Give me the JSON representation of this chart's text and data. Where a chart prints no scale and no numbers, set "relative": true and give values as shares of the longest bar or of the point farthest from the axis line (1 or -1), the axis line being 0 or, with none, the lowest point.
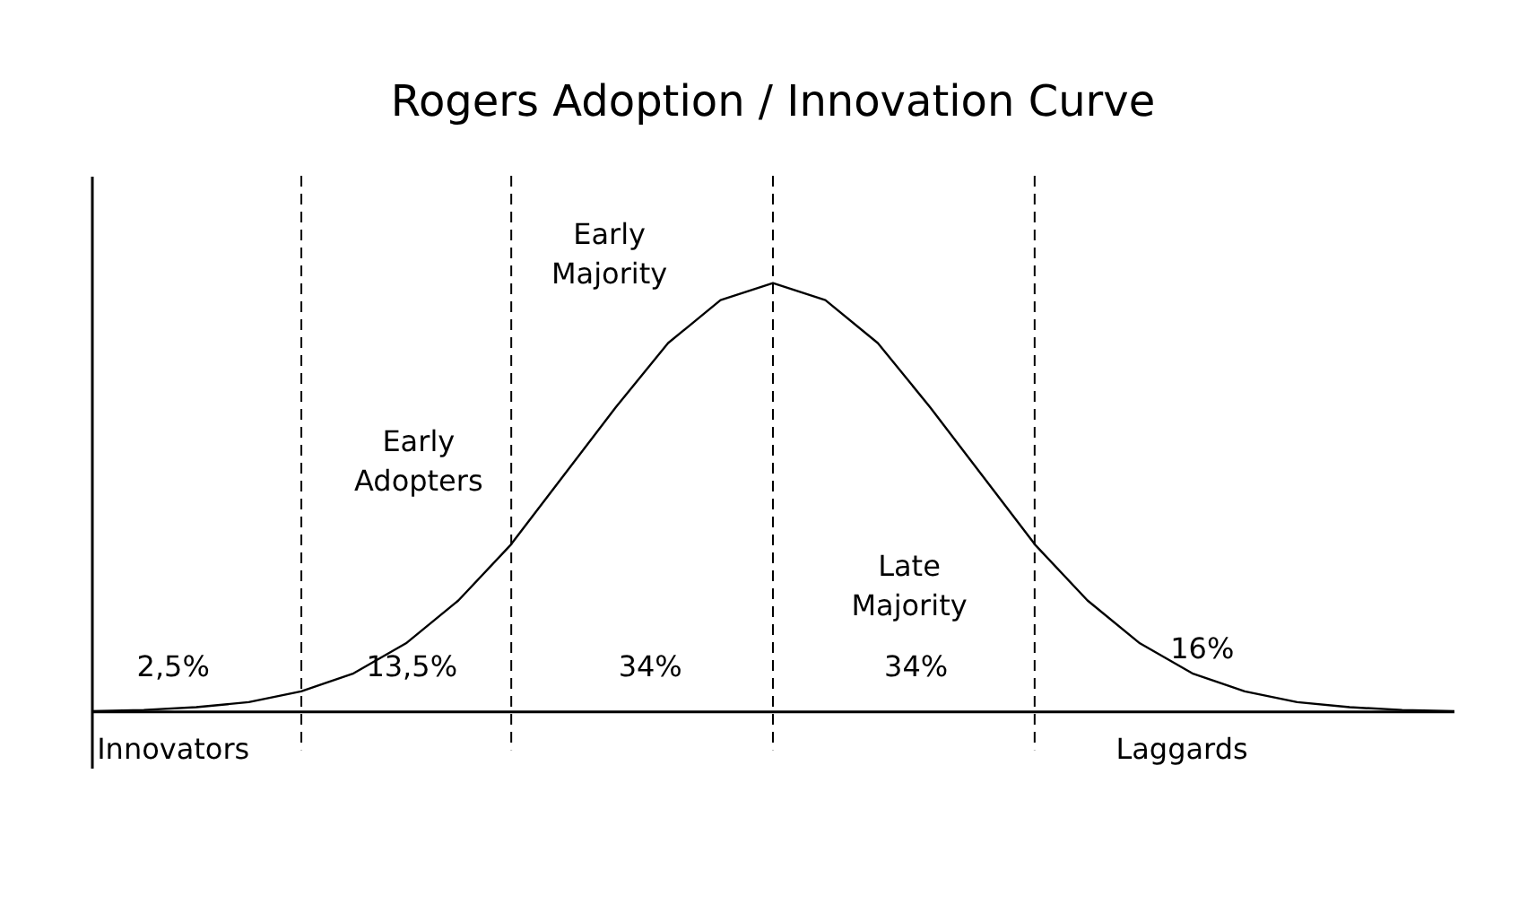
{
  "chart_data": {
    "type": "line",
    "title": "Rogers Adoption / Innovation Curve",
    "relative": true,
    "grid": "x",
    "marker": "none",
    "line_style": "solid",
    "categories": [
      null,
      null,
      null,
      null,
      null,
      null,
      null,
      null,
      null,
      null,
      null,
      null,
      null,
      null,
      null,
      null,
      null,
      null,
      null,
      null,
      null,
      null,
      null,
      null,
      null,
      null,
      null
    ],
    "series": [
      {
        "color": "#000000",
        "values": [
          0.002,
          0.0045,
          0.011,
          0.023,
          0.048,
          0.09,
          0.16,
          0.26,
          0.39,
          0.55,
          0.71,
          0.86,
          0.96,
          1,
          0.96,
          0.86,
          0.71,
          0.55,
          0.39,
          0.26,
          0.16,
          0.09,
          0.048,
          0.023,
          0.011,
          0.0045,
          0.002
        ]
      }
    ],
    "annotations": [
      "2,5%",
      "13,5%",
      "34%",
      "34%",
      "16%",
      "Early Adopters",
      "Early Majority",
      "Late Majority",
      "Innovators",
      "Laggards"
    ]
  }
}
